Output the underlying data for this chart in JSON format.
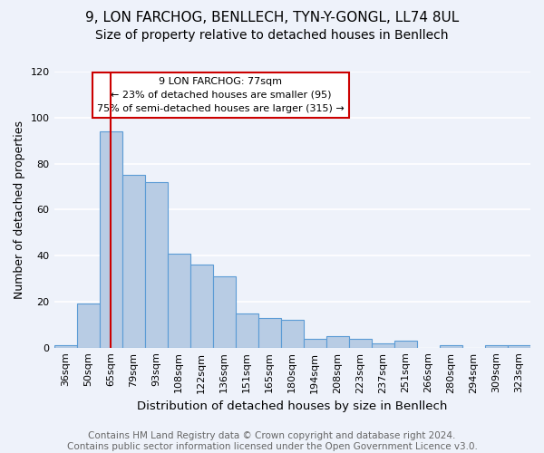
{
  "title": "9, LON FARCHOG, BENLLECH, TYN-Y-GONGL, LL74 8UL",
  "subtitle": "Size of property relative to detached houses in Benllech",
  "xlabel": "Distribution of detached houses by size in Benllech",
  "ylabel": "Number of detached properties",
  "bins": [
    "36sqm",
    "50sqm",
    "65sqm",
    "79sqm",
    "93sqm",
    "108sqm",
    "122sqm",
    "136sqm",
    "151sqm",
    "165sqm",
    "180sqm",
    "194sqm",
    "208sqm",
    "223sqm",
    "237sqm",
    "251sqm",
    "266sqm",
    "280sqm",
    "294sqm",
    "309sqm",
    "323sqm"
  ],
  "values": [
    1,
    19,
    94,
    75,
    72,
    41,
    36,
    31,
    15,
    13,
    12,
    4,
    5,
    4,
    2,
    3,
    0,
    1,
    0,
    1,
    1
  ],
  "bar_color": "#b8cce4",
  "bar_edge_color": "#5b9bd5",
  "red_line_x": 2.5,
  "annotation_text": "9 LON FARCHOG: 77sqm\n← 23% of detached houses are smaller (95)\n75% of semi-detached houses are larger (315) →",
  "annotation_box_color": "#ffffff",
  "annotation_box_edge": "#cc0000",
  "footnote": "Contains HM Land Registry data © Crown copyright and database right 2024.\nContains public sector information licensed under the Open Government Licence v3.0.",
  "ylim": [
    0,
    120
  ],
  "yticks": [
    0,
    20,
    40,
    60,
    80,
    100,
    120
  ],
  "background_color": "#eef2fa",
  "grid_color": "#ffffff",
  "title_fontsize": 11,
  "subtitle_fontsize": 10,
  "xlabel_fontsize": 9.5,
  "ylabel_fontsize": 9,
  "tick_fontsize": 8,
  "footnote_fontsize": 7.5
}
